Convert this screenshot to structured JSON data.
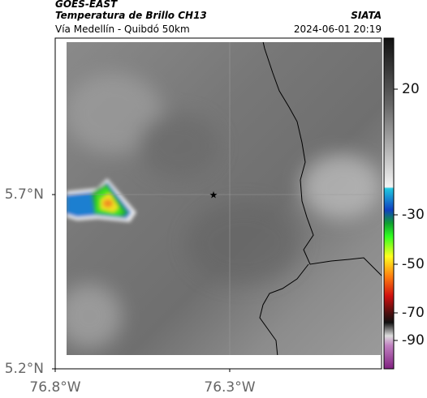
{
  "header": {
    "product": "GOES-EAST",
    "title": "Temperatura de Brillo CH13",
    "source": "SIATA",
    "subtitle": "Vía Medellín - Quibdó 50km",
    "datetime": "2024-06-01 20:19"
  },
  "map": {
    "lon_lim": [
      -76.8,
      -75.865
    ],
    "lat_lim": [
      5.2,
      6.149
    ],
    "lat_ticks": [
      {
        "value": 5.7,
        "label": "5.7°N"
      },
      {
        "value": 5.2,
        "label": "5.2°N"
      }
    ],
    "lon_ticks": [
      {
        "value": -76.8,
        "label": "76.8°W"
      },
      {
        "value": -76.3,
        "label": "76.3°W"
      }
    ]
  },
  "colorbar": {
    "ticks": [
      20,
      -30,
      -50,
      -70,
      -90
    ]
  }
}
